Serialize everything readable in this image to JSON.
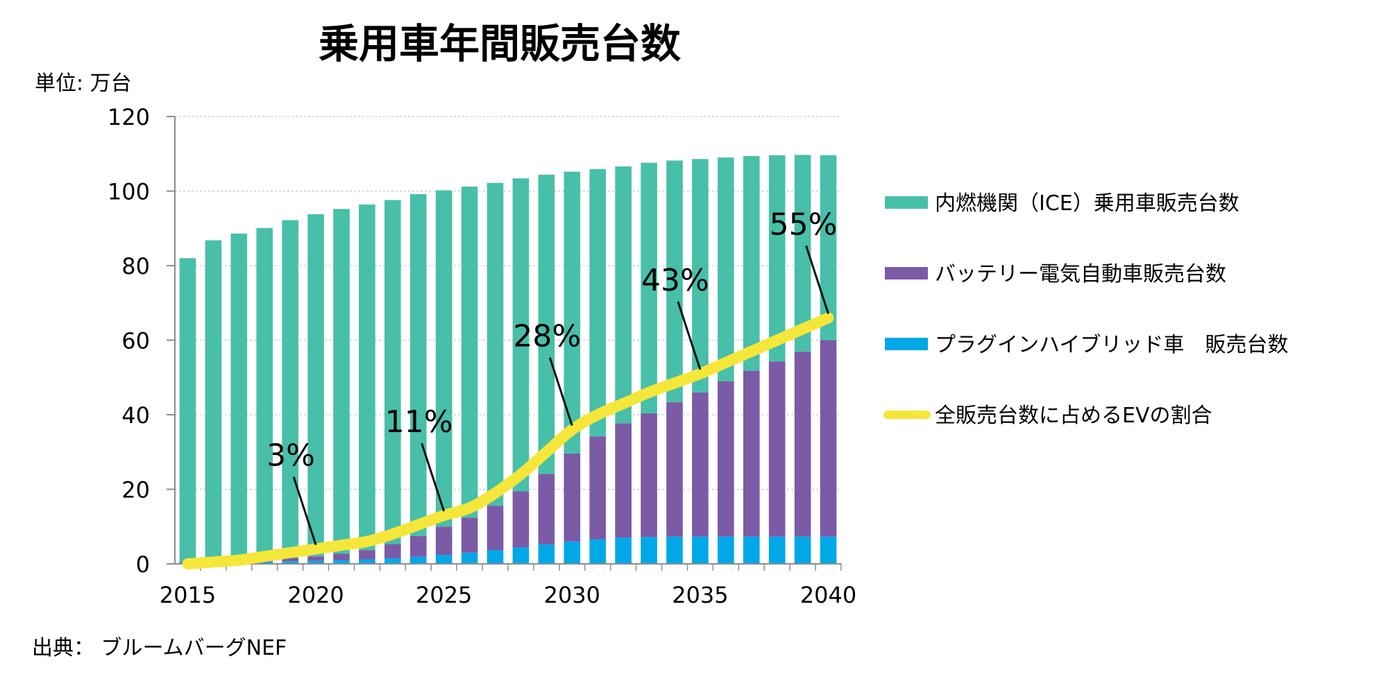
{
  "chart_data": {
    "type": "bar",
    "title": "乗用車年間販売台数",
    "unit_label": "単位:  万台",
    "source": "出典：  ブルームバーグNEF",
    "ylim": [
      0,
      120
    ],
    "yticks": [
      0,
      20,
      40,
      60,
      80,
      100,
      120
    ],
    "xticks": [
      "2015",
      "2020",
      "2025",
      "2030",
      "2035",
      "2040"
    ],
    "grid": true,
    "legend_position": "right",
    "categories": [
      "2015",
      "2016",
      "2017",
      "2018",
      "2019",
      "2020",
      "2021",
      "2022",
      "2023",
      "2024",
      "2025",
      "2026",
      "2027",
      "2028",
      "2029",
      "2030",
      "2031",
      "2032",
      "2033",
      "2034",
      "2035",
      "2036",
      "2037",
      "2038",
      "2039",
      "2040"
    ],
    "series": [
      {
        "name": "プラグインハイブリッド車　販売台数",
        "color": "#00a8e8",
        "values": [
          0.3,
          0.4,
          0.5,
          0.6,
          0.7,
          0.8,
          1.0,
          1.2,
          1.5,
          1.9,
          2.4,
          3.0,
          3.7,
          4.4,
          5.2,
          6.0,
          6.6,
          7.0,
          7.2,
          7.3,
          7.3,
          7.3,
          7.3,
          7.3,
          7.3,
          7.3
        ]
      },
      {
        "name": "バッテリー電気自動車販売台数",
        "color": "#7b5aa6",
        "values": [
          0.3,
          0.4,
          0.5,
          0.7,
          0.9,
          1.2,
          1.7,
          2.5,
          3.8,
          5.6,
          7.6,
          9.4,
          11.9,
          15.1,
          18.9,
          23.6,
          27.6,
          30.7,
          33.2,
          36.1,
          38.7,
          41.7,
          44.5,
          47.0,
          49.6,
          52.7
        ]
      },
      {
        "name": "内燃機関（ICE）乗用車販売台数",
        "color": "#48bfa9",
        "values": [
          81.4,
          86.0,
          87.6,
          88.8,
          90.6,
          91.8,
          92.5,
          92.7,
          92.3,
          91.7,
          90.2,
          88.8,
          86.6,
          83.9,
          80.3,
          75.6,
          71.7,
          68.9,
          67.2,
          64.8,
          62.6,
          60.0,
          57.6,
          55.3,
          52.8,
          49.6
        ]
      }
    ],
    "ev_share": {
      "name": "全販売台数に占めるEVの割合",
      "color": "#f5e63a",
      "plotted_on_axis_value": [
        0.0,
        0.5,
        1.0,
        2.0,
        3.0,
        4.0,
        5.0,
        6.0,
        8.0,
        10.5,
        13.0,
        15.0,
        19.0,
        24.0,
        30.0,
        36.0,
        40.0,
        43.0,
        46.0,
        48.5,
        51.0,
        54.0,
        57.0,
        60.0,
        63.0,
        66.0
      ],
      "labels": [
        {
          "text": "3%",
          "year": "2020"
        },
        {
          "text": "11%",
          "year": "2025"
        },
        {
          "text": "28%",
          "year": "2030"
        },
        {
          "text": "43%",
          "year": "2035"
        },
        {
          "text": "55%",
          "year": "2040"
        }
      ]
    }
  }
}
